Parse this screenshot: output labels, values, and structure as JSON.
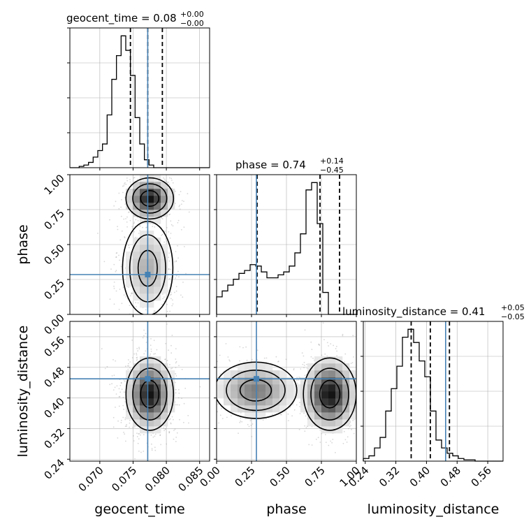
{
  "chart_data": {
    "type": "corner",
    "colors": {
      "truth": "#4682b4",
      "hist": "#000000",
      "grid": "#b0b0b0",
      "points": "#8c8c8c"
    },
    "parameters": [
      {
        "name": "geocent_time",
        "axis_label": "geocent_time",
        "title": "geocent_time = 0.08",
        "title_upper": "+0.00",
        "title_lower": "−0.00",
        "range": [
          0.0655,
          0.0865
        ],
        "ticks": [
          0.07,
          0.075,
          0.08,
          0.085
        ],
        "tick_labels": [
          "0.070",
          "0.075",
          "0.080",
          "0.085"
        ],
        "truth": 0.0772,
        "quantiles": [
          0.0746,
          0.0772,
          0.0794
        ],
        "hist_edges_start": 0.0655,
        "hist_bin_width": 0.0007,
        "hist_counts": [
          0,
          0,
          1,
          2,
          4,
          8,
          13,
          18,
          40,
          67,
          85,
          100,
          89,
          70,
          38,
          18,
          6,
          2,
          0,
          0,
          0,
          0,
          0,
          0,
          0,
          0,
          0,
          0,
          0,
          0
        ]
      },
      {
        "name": "phase",
        "axis_label": "phase",
        "title": "phase = 0.74",
        "title_upper": "+0.14",
        "title_lower": "−0.45",
        "range": [
          0.0,
          1.0
        ],
        "ticks": [
          0.0,
          0.25,
          0.5,
          0.75,
          1.0
        ],
        "tick_labels": [
          "0.00",
          "0.25",
          "0.50",
          "0.75",
          "1.00"
        ],
        "truth": 0.285,
        "quantiles": [
          0.29,
          0.74,
          0.88
        ],
        "hist_edges_start": 0.0,
        "hist_bin_width": 0.04,
        "hist_counts": [
          12,
          16,
          20,
          24,
          28,
          30,
          34,
          33,
          29,
          25,
          25,
          27,
          29,
          33,
          42,
          55,
          85,
          90,
          62,
          15,
          0,
          0,
          0,
          0,
          0
        ]
      },
      {
        "name": "luminosity_distance",
        "axis_label": "luminosity_distance",
        "title": "luminosity_distance = 0.41",
        "title_upper": "+0.05",
        "title_lower": "−0.05",
        "range": [
          0.235,
          0.6
        ],
        "ticks": [
          0.24,
          0.32,
          0.4,
          0.48,
          0.56
        ],
        "tick_labels": [
          "0.24",
          "0.32",
          "0.40",
          "0.48",
          "0.56"
        ],
        "truth": 0.45,
        "quantiles": [
          0.36,
          0.41,
          0.46
        ],
        "hist_edges_start": 0.235,
        "hist_bin_width": 0.0146,
        "hist_counts": [
          2,
          4,
          10,
          18,
          38,
          55,
          72,
          94,
          100,
          90,
          76,
          64,
          38,
          16,
          10,
          6,
          4,
          2,
          1,
          1,
          0,
          0,
          0,
          0,
          0
        ]
      }
    ],
    "pairs": [
      {
        "x": "geocent_time",
        "y": "phase",
        "modes": [
          {
            "mx": 0.0775,
            "my": 0.83,
            "sx": 0.0017,
            "sy": 0.07,
            "w": 0.55
          },
          {
            "mx": 0.0772,
            "my": 0.33,
            "sx": 0.0018,
            "sy": 0.16,
            "w": 0.45
          }
        ]
      },
      {
        "x": "geocent_time",
        "y": "luminosity_distance",
        "modes": [
          {
            "mx": 0.0775,
            "my": 0.41,
            "sx": 0.0017,
            "sy": 0.045,
            "w": 1.0
          }
        ]
      },
      {
        "x": "phase",
        "y": "luminosity_distance",
        "modes": [
          {
            "mx": 0.81,
            "my": 0.41,
            "sx": 0.09,
            "sy": 0.045,
            "w": 0.6
          },
          {
            "mx": 0.28,
            "my": 0.42,
            "sx": 0.14,
            "sy": 0.035,
            "w": 0.4
          }
        ]
      }
    ]
  }
}
